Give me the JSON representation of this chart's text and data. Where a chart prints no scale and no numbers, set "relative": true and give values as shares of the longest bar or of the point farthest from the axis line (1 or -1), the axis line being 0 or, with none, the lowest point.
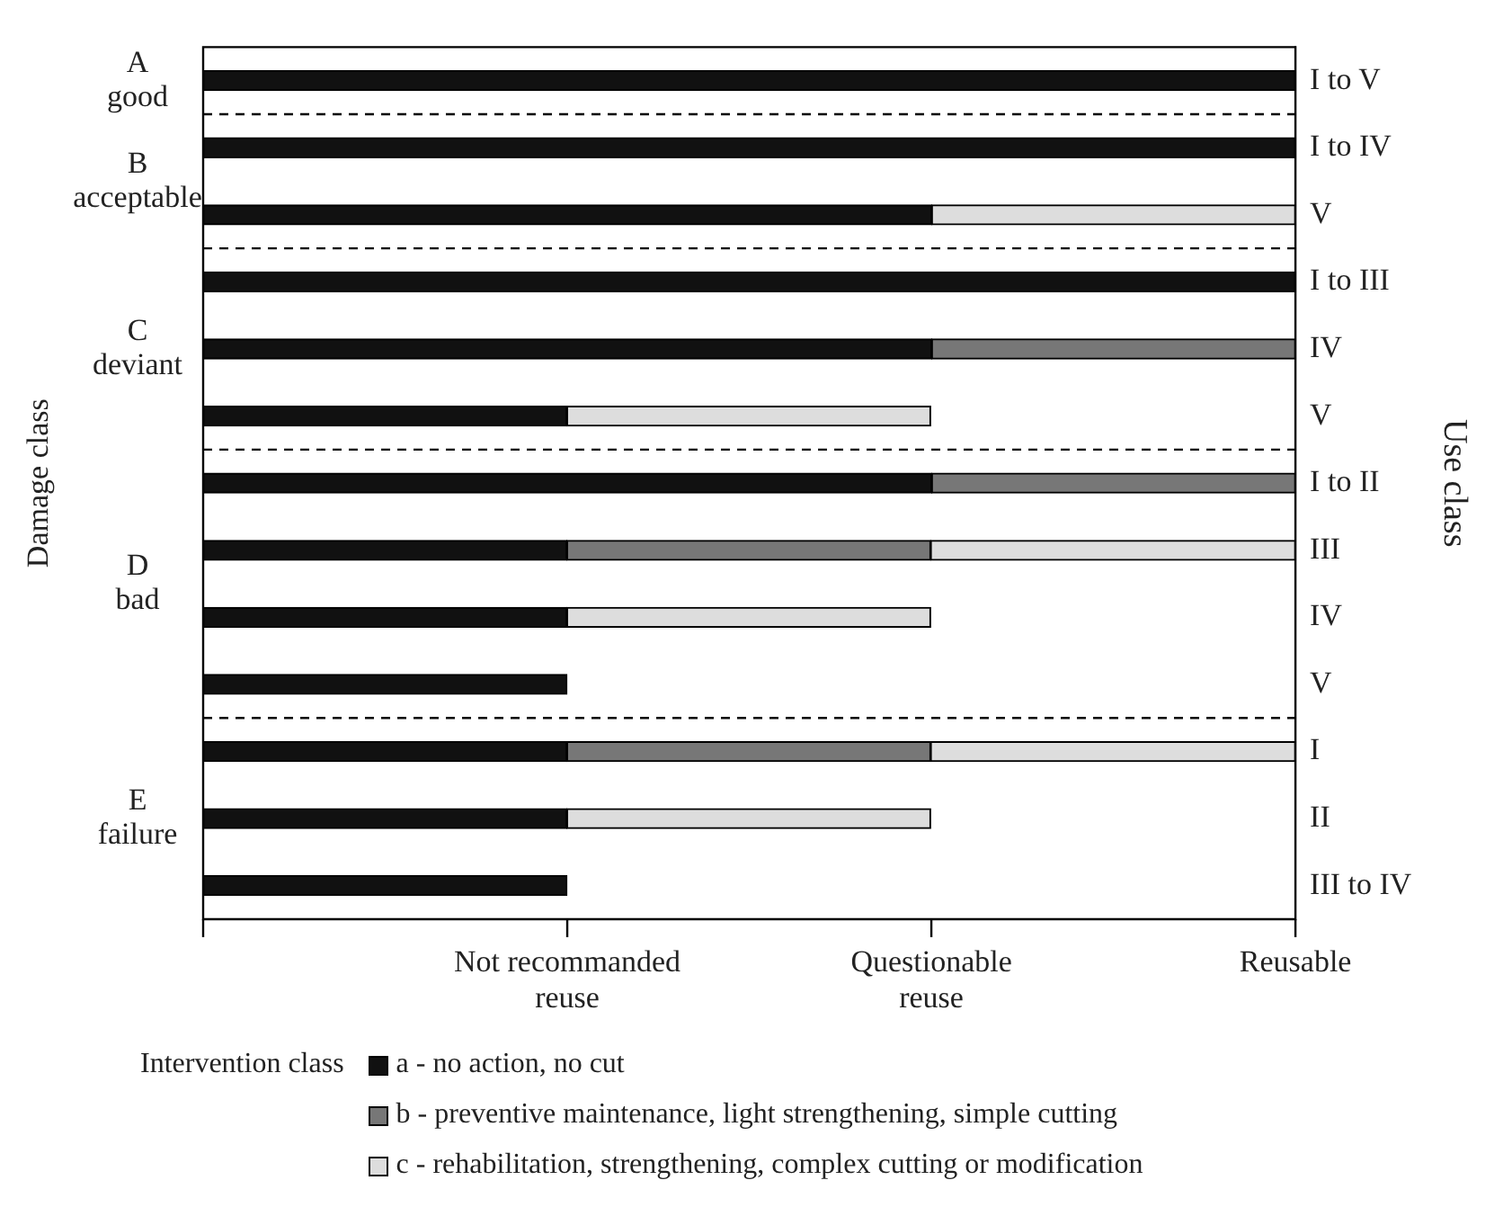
{
  "chart_data": {
    "type": "bar",
    "orientation": "horizontal",
    "stacked": true,
    "relative": true,
    "ylabel": "Damage class",
    "y2label": "Use class",
    "legend_title": "Intervention class",
    "legend": "bottom",
    "categories": [
      "I to V",
      "I to IV",
      "V",
      "I to III",
      "IV",
      "V",
      "I to II",
      "III",
      "IV",
      "V",
      "I",
      "II",
      "III to IV"
    ],
    "series": [
      {
        "name": "a - no action, no cut",
        "color": "#111111",
        "values": [
          1,
          1,
          0.667,
          1,
          0.667,
          0.333,
          0.667,
          0.333,
          0.333,
          0.333,
          0.333,
          0.333,
          0.333
        ]
      },
      {
        "name": "b - preventive maintenance, light strengthening, simple cutting",
        "color": "#777777",
        "values": [
          null,
          null,
          null,
          null,
          0.333,
          null,
          0.333,
          0.333,
          null,
          null,
          0.333,
          null,
          null
        ]
      },
      {
        "name": "c - rehabilitation, strengthening, complex cutting or modification",
        "color": "#dddddd",
        "values": [
          null,
          null,
          0.333,
          null,
          null,
          0.333,
          null,
          0.334,
          0.333,
          null,
          0.334,
          0.333,
          null
        ]
      }
    ],
    "grid": false,
    "annotations": [
      "A\ngood",
      "B\nacceptable",
      "C\ndeviant",
      "D\nbad",
      "E\nfailure",
      "Not recommanded\nreuse",
      "Questionable\nreuse",
      "Reusable"
    ]
  }
}
